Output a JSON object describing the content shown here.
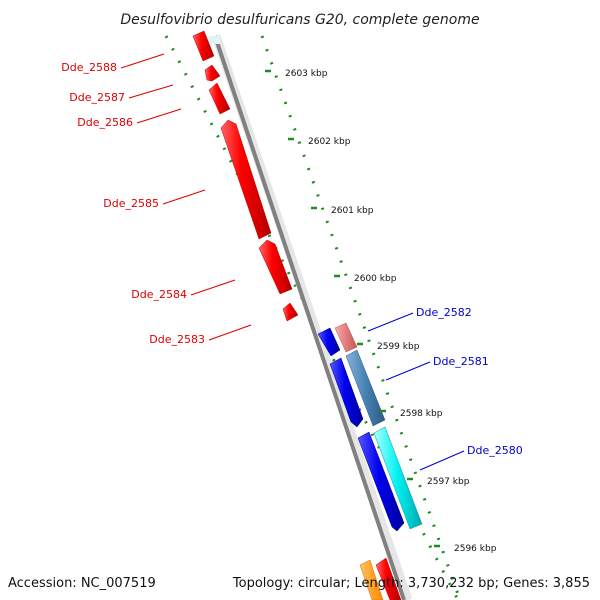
{
  "title": "Desulfovibrio desulfuricans G20, complete genome",
  "footer": {
    "accession": "Accession: NC_007519",
    "summary": "Topology: circular; Length: 3,730,232 bp; Genes: 3,855"
  },
  "ruler": {
    "ticks": [
      {
        "label": "2603 kbp"
      },
      {
        "label": "2602 kbp"
      },
      {
        "label": "2601 kbp"
      },
      {
        "label": "2600 kbp"
      },
      {
        "label": "2599 kbp"
      },
      {
        "label": "2598 kbp"
      },
      {
        "label": "2597 kbp"
      },
      {
        "label": "2596 kbp"
      }
    ]
  },
  "genes_left": [
    {
      "name": "Dde_2588",
      "color": "#dd0000"
    },
    {
      "name": "Dde_2587",
      "color": "#dd0000"
    },
    {
      "name": "Dde_2586",
      "color": "#dd0000"
    },
    {
      "name": "Dde_2585",
      "color": "#dd0000"
    },
    {
      "name": "Dde_2584",
      "color": "#dd0000"
    },
    {
      "name": "Dde_2583",
      "color": "#dd0000"
    }
  ],
  "genes_right": [
    {
      "name": "Dde_2582",
      "color": "#0000cc"
    },
    {
      "name": "Dde_2581",
      "color": "#0000cc"
    },
    {
      "name": "Dde_2580",
      "color": "#0000cc"
    }
  ],
  "colors": {
    "backbone": "#808080",
    "tick": "#228b22",
    "forward_gene": "#ff0000",
    "reverse_gene": "#0000ff",
    "steelblue_gene": "#4682b4",
    "cyan_gene": "#00e5ee",
    "pink_gene": "#e98a8a"
  }
}
